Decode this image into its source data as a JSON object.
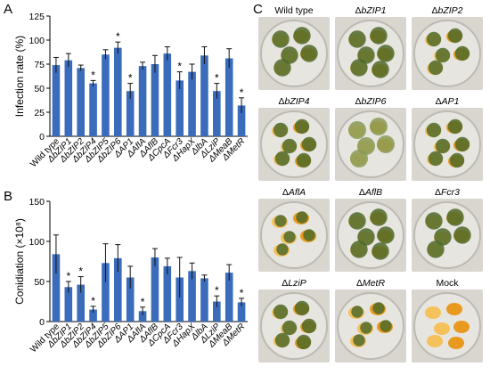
{
  "panel_labels": {
    "a": "A",
    "b": "B",
    "c": "C"
  },
  "chart_data": [
    {
      "type": "bar",
      "panel": "A",
      "ylabel": "Infection rate (%)",
      "ylim": [
        0,
        125
      ],
      "yticks": [
        0,
        25,
        50,
        75,
        100,
        125
      ],
      "categories": [
        "Wild type",
        "ΔbZIP1",
        "ΔbZIP2",
        "ΔbZIP4",
        "ΔbZIP5",
        "ΔbZIP6",
        "ΔAP1",
        "ΔAflA",
        "ΔAflB",
        "ΔCpcA",
        "ΔFcr3",
        "ΔHapX",
        "ΔlbA",
        "ΔLziP",
        "ΔMeaB",
        "ΔMetR"
      ],
      "values": [
        74,
        79,
        71,
        55,
        85,
        92,
        47,
        73,
        75,
        86,
        58,
        67,
        84,
        47,
        81,
        32
      ],
      "errors": [
        8,
        7,
        3,
        3,
        5,
        6,
        8,
        4,
        9,
        7,
        9,
        8,
        9,
        8,
        10,
        8
      ],
      "significant": [
        false,
        false,
        false,
        true,
        false,
        true,
        true,
        false,
        false,
        false,
        true,
        false,
        false,
        true,
        false,
        true
      ],
      "annotation": "*",
      "bar_color": "#3b6cbc"
    },
    {
      "type": "bar",
      "panel": "B",
      "ylabel": "Conidiation (×10⁸)",
      "ylim": [
        0,
        150
      ],
      "yticks": [
        0,
        50,
        100,
        150
      ],
      "categories": [
        "Wild type",
        "ΔbZIP1",
        "ΔbZIP2",
        "ΔbZIP4",
        "ΔbZIP5",
        "ΔbZIP6",
        "ΔAP1",
        "ΔAflA",
        "ΔAflB",
        "ΔCpcA",
        "ΔFcr3",
        "ΔHapX",
        "ΔlbA",
        "ΔLziP",
        "ΔMeaB",
        "ΔMetR"
      ],
      "values": [
        84,
        43,
        46,
        15,
        73,
        79,
        55,
        13,
        80,
        69,
        55,
        63,
        54,
        25,
        61,
        24
      ],
      "errors": [
        24,
        7,
        10,
        4,
        24,
        17,
        14,
        5,
        11,
        10,
        25,
        10,
        4,
        7,
        10,
        5
      ],
      "significant": [
        false,
        true,
        true,
        true,
        false,
        false,
        false,
        true,
        false,
        false,
        false,
        false,
        false,
        true,
        false,
        true
      ],
      "annotation": "*",
      "bar_color": "#3b6cbc"
    }
  ],
  "photos": [
    {
      "prefix": "",
      "gene": "Wild type",
      "italic": false,
      "growth": "heavy"
    },
    {
      "prefix": "Δ",
      "gene": "bZIP1",
      "italic": true,
      "growth": "heavy"
    },
    {
      "prefix": "Δ",
      "gene": "bZIP2",
      "italic": true,
      "growth": "medium"
    },
    {
      "prefix": "Δ",
      "gene": "bZIP4",
      "italic": true,
      "growth": "medium"
    },
    {
      "prefix": "Δ",
      "gene": "bZIP6",
      "italic": true,
      "growth": "fluffy"
    },
    {
      "prefix": "Δ",
      "gene": "AP1",
      "italic": true,
      "growth": "medium"
    },
    {
      "prefix": "Δ",
      "gene": "AflA",
      "italic": true,
      "growth": "light"
    },
    {
      "prefix": "Δ",
      "gene": "AflB",
      "italic": true,
      "growth": "heavy"
    },
    {
      "prefix": "Δ",
      "gene": "Fcr3",
      "italic": true,
      "growth": "heavy"
    },
    {
      "prefix": "Δ",
      "gene": "LziP",
      "italic": true,
      "growth": "medium"
    },
    {
      "prefix": "Δ",
      "gene": "MetR",
      "italic": true,
      "growth": "light"
    },
    {
      "prefix": "",
      "gene": "Mock",
      "italic": false,
      "growth": "none"
    }
  ],
  "colors": {
    "fungus": "#4f6a2a",
    "fungus_light": "#8a9a55",
    "kernel": "#e89a1e",
    "kernel_light": "#f4c15a",
    "dish_bg": "#e7e5e0",
    "dish_rim": "#bdbab3"
  }
}
